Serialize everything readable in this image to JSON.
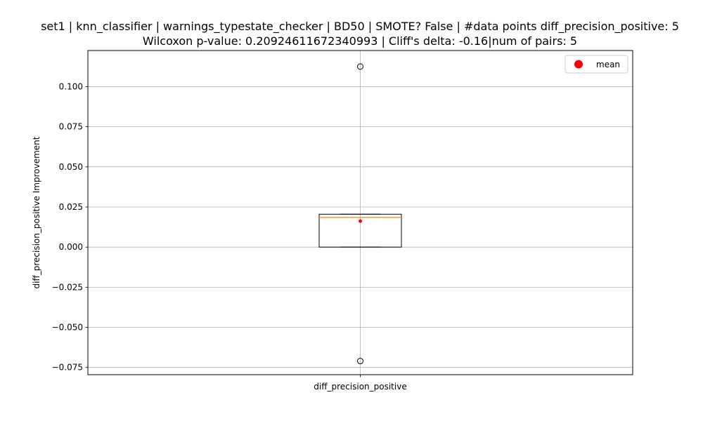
{
  "chart_data": {
    "type": "box",
    "title_line1": "set1 | knn_classifier | warnings_typestate_checker | BD50 | SMOTE? False | #data points diff_precision_positive: 5",
    "title_line2": "Wilcoxon p-value: 0.20924611672340993 | Cliff's delta: -0.16|num of pairs: 5",
    "xlabel": "",
    "ylabel": "diff_precision_positive Improvement",
    "categories": [
      "diff_precision_positive"
    ],
    "ylim": [
      -0.0795,
      0.1225
    ],
    "yticks": [
      -0.075,
      -0.05,
      -0.025,
      0.0,
      0.025,
      0.05,
      0.075,
      0.1
    ],
    "ytick_labels": [
      "−0.075",
      "−0.050",
      "−0.025",
      "0.000",
      "0.025",
      "0.050",
      "0.075",
      "0.100"
    ],
    "grid": true,
    "box": {
      "q1": 0.0,
      "median": 0.0185,
      "q3": 0.0205,
      "whisker_low": 0.0,
      "whisker_high": 0.0205,
      "mean": 0.0162,
      "outliers": [
        0.1125,
        -0.071
      ]
    },
    "legend": {
      "placement": "top-right",
      "entries": [
        {
          "label": "mean",
          "color": "#ff0000"
        }
      ]
    },
    "colors": {
      "median": "#ff7f0e",
      "mean": "#ff0000",
      "box": "#000000",
      "grid": "#b0b0b0"
    }
  }
}
